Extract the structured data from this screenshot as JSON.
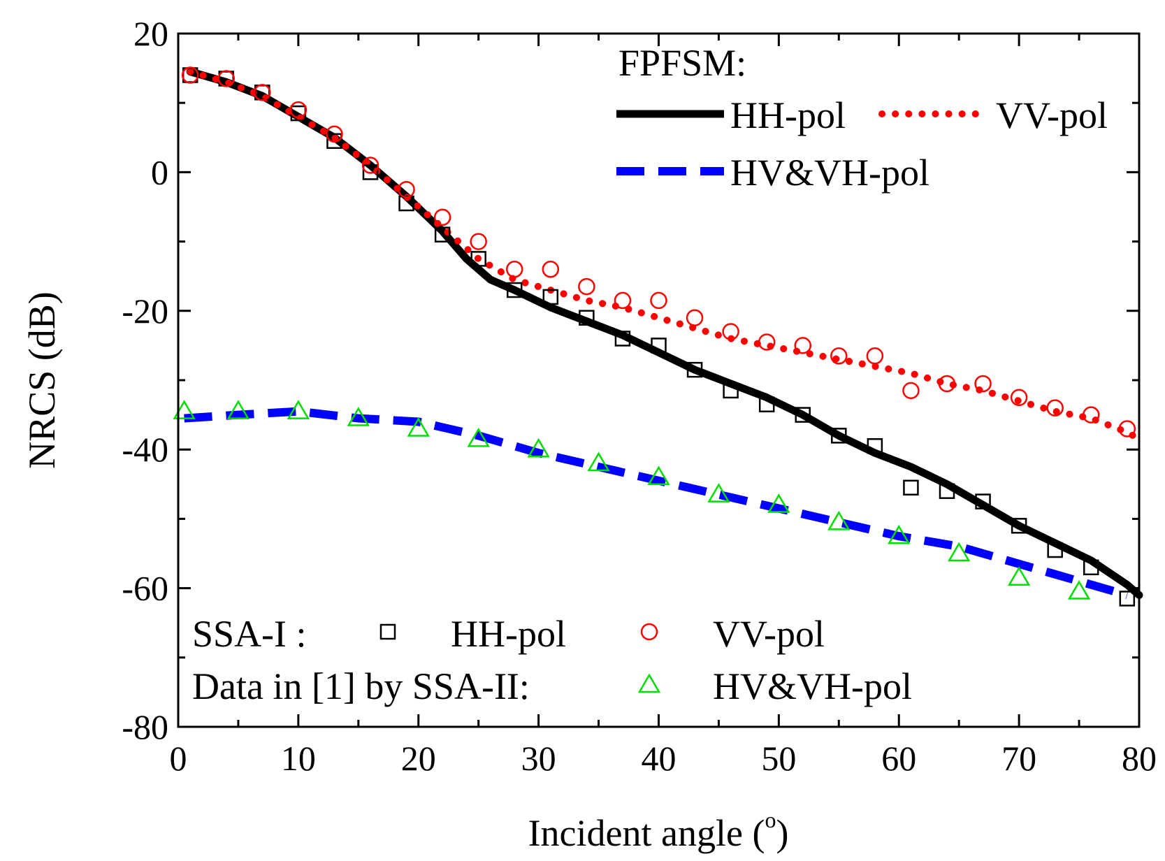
{
  "chart_data": {
    "type": "line",
    "xlabel": "Incident angle (",
    "xlabel_sup": "o",
    "xlabel_close": ")",
    "ylabel": "NRCS (dB)",
    "xlim": [
      0,
      80
    ],
    "ylim": [
      -80,
      20
    ],
    "xticks": [
      0,
      10,
      20,
      30,
      40,
      50,
      60,
      70,
      80
    ],
    "yticks": [
      -80,
      -60,
      -40,
      -20,
      0,
      20
    ],
    "legend_top": {
      "title": "FPFSM:",
      "hh": "HH-pol",
      "vv": "VV-pol",
      "hv": "HV&VH-pol"
    },
    "legend_bottom": {
      "ssa_label": "SSA-I :",
      "ssa_hh": "HH-pol",
      "ssa_vv": "VV-pol",
      "data_label": "Data in [1] by SSA-II:",
      "data_hv": "HV&VH-pol"
    },
    "colors": {
      "hh": "#000000",
      "vv": "#ff0000",
      "hv": "#0000ff",
      "tri": "#00dd00"
    },
    "series": [
      {
        "name": "FPFSM HH-pol",
        "style": "solid",
        "x": [
          1,
          4,
          7,
          10,
          13,
          16,
          19,
          22,
          24,
          26,
          28,
          31,
          34,
          37,
          40,
          43,
          46,
          49,
          52,
          55,
          58,
          61,
          64,
          67,
          70,
          73,
          76,
          79,
          80
        ],
        "y": [
          14.5,
          13,
          11,
          8,
          5,
          1,
          -3.5,
          -8.5,
          -12.5,
          -15.5,
          -17,
          -19.5,
          -21.5,
          -23.5,
          -26,
          -28.5,
          -30.5,
          -32.5,
          -35,
          -38,
          -40.5,
          -42.5,
          -45,
          -48,
          -51,
          -53.5,
          -56,
          -59.5,
          -61
        ]
      },
      {
        "name": "FPFSM VV-pol",
        "style": "dotted",
        "x": [
          1,
          4,
          7,
          10,
          13,
          16,
          19,
          22,
          25,
          28,
          31,
          34,
          37,
          40,
          43,
          46,
          49,
          52,
          55,
          58,
          61,
          64,
          67,
          70,
          73,
          76,
          79,
          80
        ],
        "y": [
          14.5,
          13,
          11,
          8,
          5,
          1,
          -3.5,
          -8,
          -12.5,
          -15.5,
          -17,
          -18.5,
          -19.5,
          -21,
          -22.5,
          -24,
          -25,
          -26,
          -27,
          -28,
          -29,
          -30.5,
          -31.5,
          -33,
          -34.5,
          -35.5,
          -37.5,
          -38.5
        ]
      },
      {
        "name": "FPFSM HV&VH-pol",
        "style": "dashed",
        "x": [
          0.5,
          5,
          10,
          15,
          20,
          25,
          30,
          35,
          40,
          45,
          50,
          55,
          60,
          65,
          70,
          75,
          79
        ],
        "y": [
          -35.5,
          -35,
          -34.5,
          -35.5,
          -36,
          -38,
          -40.5,
          -42.5,
          -44.5,
          -46.5,
          -48.5,
          -50.5,
          -52.5,
          -54,
          -56.5,
          -59,
          -61
        ]
      },
      {
        "name": "SSA-I HH-pol",
        "marker": "square",
        "x": [
          1,
          4,
          7,
          10,
          13,
          16,
          19,
          22,
          25,
          28,
          31,
          34,
          37,
          40,
          43,
          46,
          49,
          52,
          55,
          58,
          61,
          64,
          67,
          70,
          73,
          76,
          79
        ],
        "y": [
          14,
          13.5,
          11.5,
          8.5,
          4.5,
          0,
          -4.5,
          -9,
          -12.5,
          -17,
          -18,
          -21,
          -24,
          -25,
          -28.5,
          -31.5,
          -33.5,
          -35,
          -38,
          -39.5,
          -45.5,
          -46,
          -47.5,
          -51,
          -54.5,
          -57,
          -61.5
        ]
      },
      {
        "name": "SSA-I VV-pol",
        "marker": "circle",
        "x": [
          1,
          4,
          7,
          10,
          13,
          16,
          19,
          22,
          25,
          28,
          31,
          34,
          37,
          40,
          43,
          46,
          49,
          52,
          55,
          58,
          61,
          64,
          67,
          70,
          73,
          76,
          79
        ],
        "y": [
          14,
          13.5,
          11.5,
          9,
          5.5,
          1,
          -2.5,
          -6.5,
          -10,
          -14,
          -14,
          -16.5,
          -18.5,
          -18.5,
          -21,
          -23,
          -24.5,
          -25,
          -26.5,
          -26.5,
          -31.5,
          -30.5,
          -30.5,
          -32.5,
          -34,
          -35,
          -37
        ]
      },
      {
        "name": "Data in [1] by SSA-II HV&VH-pol",
        "marker": "triangle",
        "x": [
          0.5,
          5,
          10,
          15,
          20,
          25,
          30,
          35,
          40,
          45,
          50,
          55,
          60,
          65,
          70,
          75
        ],
        "y": [
          -34.5,
          -34.5,
          -34.5,
          -35.5,
          -37,
          -38.5,
          -40,
          -42,
          -44,
          -46.5,
          -48,
          -50.5,
          -52.5,
          -55,
          -58.5,
          -60.5
        ]
      }
    ]
  }
}
